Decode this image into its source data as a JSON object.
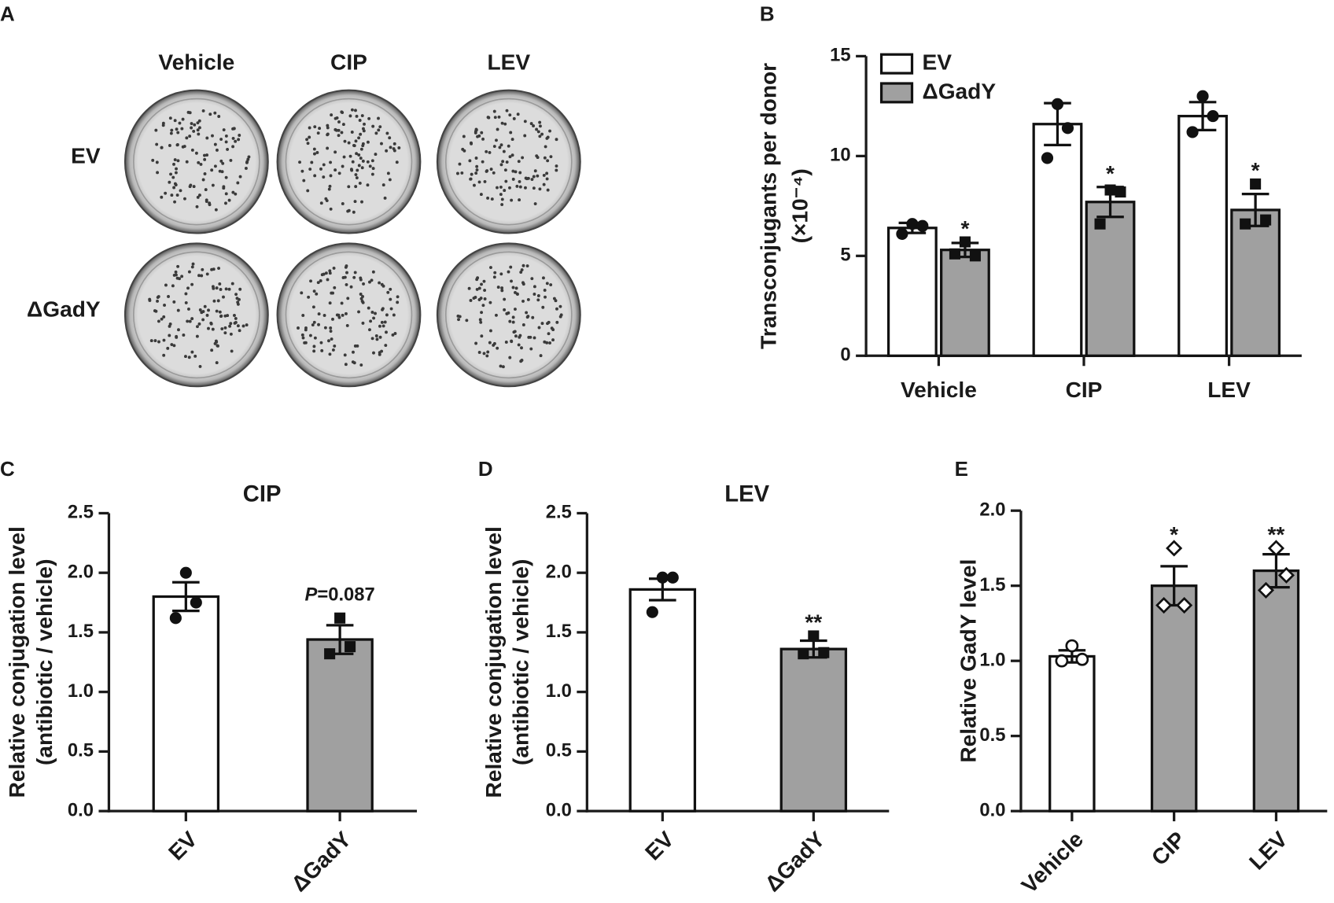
{
  "plates": {
    "panel": "A",
    "columns": [
      "Vehicle",
      "CIP",
      "LEV"
    ],
    "rows": [
      "EV",
      "ΔGadY"
    ]
  },
  "chart_data": [
    {
      "type": "grouped-bar",
      "panel": "B",
      "ylabel": [
        "Transconjugants per donor",
        "(×10⁻⁴)"
      ],
      "categories": [
        "Vehicle",
        "CIP",
        "LEV"
      ],
      "series": [
        {
          "name": "EV",
          "color": "#ffffff",
          "marker": "circle",
          "values": [
            6.4,
            11.6,
            12.0
          ],
          "errors": [
            0.25,
            1.05,
            0.7
          ],
          "points": [
            [
              6.6,
              6.5,
              6.1
            ],
            [
              12.6,
              11.4,
              9.9
            ],
            [
              13.0,
              12.0,
              11.2
            ]
          ]
        },
        {
          "name": "ΔGadY",
          "color": "#a0a0a0",
          "marker": "square",
          "values": [
            5.3,
            7.7,
            7.3
          ],
          "errors": [
            0.35,
            0.75,
            0.8
          ],
          "points": [
            [
              5.7,
              5.0,
              5.1
            ],
            [
              8.3,
              8.2,
              6.6
            ],
            [
              8.6,
              6.8,
              6.6
            ]
          ],
          "annotations": [
            "*",
            "*",
            "*"
          ]
        }
      ],
      "ylim": [
        0,
        15
      ],
      "yticks": [
        0,
        5,
        10,
        15
      ],
      "grid": false
    },
    {
      "type": "bar",
      "panel": "C",
      "title": "CIP",
      "ylabel": [
        "Relative conjugation level",
        "(antibiotic / vehicle)"
      ],
      "categories": [
        "EV",
        "ΔGadY"
      ],
      "values": [
        1.8,
        1.44
      ],
      "errors": [
        0.12,
        0.12
      ],
      "colors": [
        "#ffffff",
        "#a0a0a0"
      ],
      "markers": [
        "circle",
        "square"
      ],
      "points": [
        [
          2.0,
          1.75,
          1.62
        ],
        [
          1.62,
          1.38,
          1.32
        ]
      ],
      "annotations": [
        null,
        "P=0.087"
      ],
      "ylim": [
        0,
        2.5
      ],
      "yticks": [
        {
          "value": 0,
          "label": "0.0"
        },
        {
          "value": 0.5,
          "label": "0.5"
        },
        {
          "value": 1,
          "label": "1.0"
        },
        {
          "value": 1.5,
          "label": "1.5"
        },
        {
          "value": 2,
          "label": "2.0"
        },
        2.5
      ],
      "grid": false
    },
    {
      "type": "bar",
      "panel": "D",
      "title": "LEV",
      "ylabel": [
        "Relative conjugation level",
        "(antibiotic / vehicle)"
      ],
      "categories": [
        "EV",
        "ΔGadY"
      ],
      "values": [
        1.86,
        1.36
      ],
      "errors": [
        0.09,
        0.07
      ],
      "colors": [
        "#ffffff",
        "#a0a0a0"
      ],
      "markers": [
        "circle",
        "square"
      ],
      "points": [
        [
          1.96,
          1.96,
          1.67
        ],
        [
          1.47,
          1.33,
          1.32
        ]
      ],
      "annotations": [
        null,
        "**"
      ],
      "ylim": [
        0,
        2.5
      ],
      "yticks": [
        {
          "value": 0,
          "label": "0.0"
        },
        {
          "value": 0.5,
          "label": "0.5"
        },
        {
          "value": 1,
          "label": "1.0"
        },
        {
          "value": 1.5,
          "label": "1.5"
        },
        {
          "value": 2,
          "label": "2.0"
        },
        2.5
      ],
      "grid": false
    },
    {
      "type": "bar",
      "panel": "E",
      "ylabel": [
        "Relative GadY level"
      ],
      "categories": [
        "Vehicle",
        "CIP",
        "LEV"
      ],
      "values": [
        1.03,
        1.5,
        1.6
      ],
      "errors": [
        0.04,
        0.13,
        0.11
      ],
      "colors": [
        "#ffffff",
        "#a0a0a0",
        "#a0a0a0"
      ],
      "markers": [
        "open-circle",
        "open-diamond",
        "open-diamond"
      ],
      "points": [
        [
          1.1,
          1.01,
          1.0
        ],
        [
          1.75,
          1.37,
          1.37
        ],
        [
          1.75,
          1.57,
          1.47
        ]
      ],
      "annotations": [
        null,
        "*",
        "**"
      ],
      "ylim": [
        0,
        2
      ],
      "yticks": [
        {
          "value": 0,
          "label": "0.0"
        },
        {
          "value": 0.5,
          "label": "0.5"
        },
        {
          "value": 1,
          "label": "1.0"
        },
        {
          "value": 1.5,
          "label": "1.5"
        },
        {
          "value": 2,
          "label": "2.0"
        }
      ],
      "grid": false
    }
  ]
}
